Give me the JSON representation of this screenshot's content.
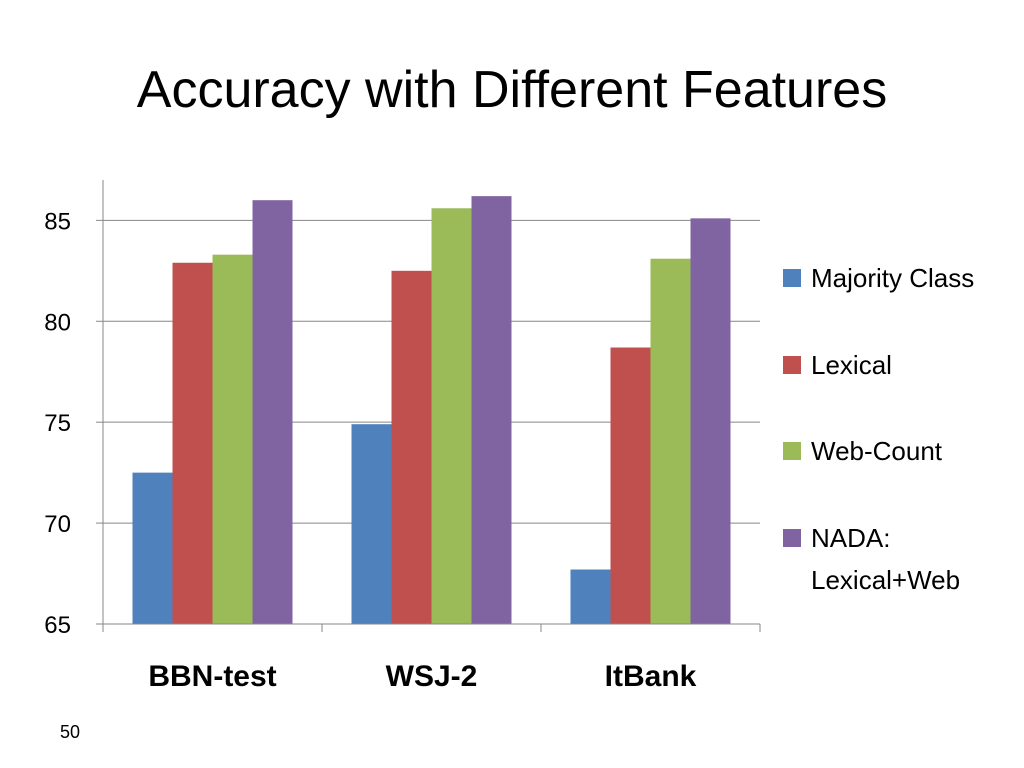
{
  "slide": {
    "title": "Accuracy with Different Features",
    "page_number": "50"
  },
  "chart_data": {
    "type": "bar",
    "categories": [
      "BBN-test",
      "WSJ-2",
      "ItBank"
    ],
    "series": [
      {
        "name": "Majority Class",
        "color": "#4F81BD",
        "values": [
          72.5,
          74.9,
          67.7
        ]
      },
      {
        "name": "Lexical",
        "color": "#C0504D",
        "values": [
          82.9,
          82.5,
          78.7
        ]
      },
      {
        "name": "Web-Count",
        "color": "#9BBB59",
        "values": [
          83.3,
          85.6,
          83.1
        ]
      },
      {
        "name": "NADA: Lexical+Web",
        "color": "#8064A2",
        "values": [
          86.0,
          86.2,
          85.1
        ]
      }
    ],
    "ylim": [
      65,
      87
    ],
    "yticks": [
      65,
      70,
      75,
      80,
      85
    ],
    "grid": true,
    "legend": "right",
    "title": "",
    "xlabel": "",
    "ylabel": ""
  }
}
